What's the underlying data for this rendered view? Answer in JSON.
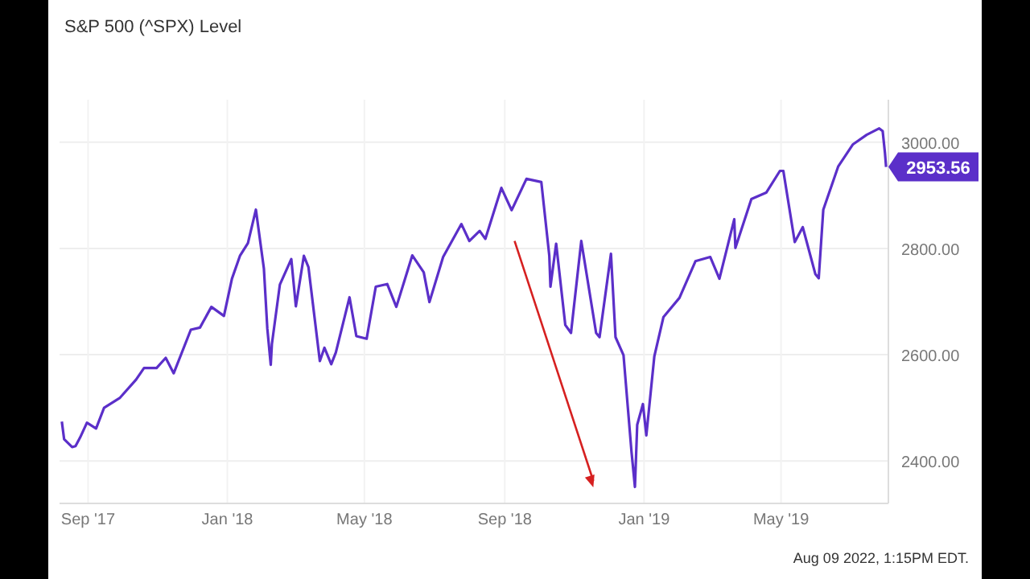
{
  "chart_data": {
    "type": "line",
    "title": "S&P 500 (^SPX) Level",
    "x": [
      "2017-08-09",
      "2017-08-11",
      "2017-08-18",
      "2017-08-21",
      "2017-08-25",
      "2017-08-31",
      "2017-09-08",
      "2017-09-15",
      "2017-09-29",
      "2017-10-13",
      "2017-10-20",
      "2017-10-31",
      "2017-11-08",
      "2017-11-15",
      "2017-11-30",
      "2017-12-08",
      "2017-12-18",
      "2017-12-29",
      "2018-01-05",
      "2018-01-12",
      "2018-01-19",
      "2018-01-26",
      "2018-02-02",
      "2018-02-05",
      "2018-02-08",
      "2018-02-09",
      "2018-02-16",
      "2018-02-26",
      "2018-03-02",
      "2018-03-09",
      "2018-03-13",
      "2018-03-23",
      "2018-03-27",
      "2018-04-02",
      "2018-04-06",
      "2018-04-18",
      "2018-04-24",
      "2018-05-03",
      "2018-05-11",
      "2018-05-21",
      "2018-05-29",
      "2018-06-12",
      "2018-06-22",
      "2018-06-27",
      "2018-07-09",
      "2018-07-25",
      "2018-08-01",
      "2018-08-10",
      "2018-08-15",
      "2018-08-29",
      "2018-09-07",
      "2018-09-20",
      "2018-10-03",
      "2018-10-10",
      "2018-10-11",
      "2018-10-16",
      "2018-10-24",
      "2018-10-29",
      "2018-11-07",
      "2018-11-20",
      "2018-11-23",
      "2018-12-03",
      "2018-12-07",
      "2018-12-14",
      "2018-12-21",
      "2018-12-24",
      "2018-12-26",
      "2018-12-31",
      "2019-01-03",
      "2019-01-10",
      "2019-01-18",
      "2019-02-01",
      "2019-02-15",
      "2019-02-28",
      "2019-03-08",
      "2019-03-21",
      "2019-03-22",
      "2019-04-05",
      "2019-04-18",
      "2019-04-30",
      "2019-05-03",
      "2019-05-13",
      "2019-05-20",
      "2019-05-31",
      "2019-06-03",
      "2019-06-07",
      "2019-06-20",
      "2019-07-03",
      "2019-07-15",
      "2019-07-26",
      "2019-07-29",
      "2019-07-31",
      "2019-08-01"
    ],
    "series": [
      {
        "color": "#5b2fc9",
        "values": [
          2474,
          2441,
          2426,
          2428,
          2444,
          2472,
          2461,
          2500,
          2519,
          2553,
          2575,
          2575,
          2594,
          2565,
          2647,
          2651,
          2690,
          2673,
          2743,
          2786,
          2810,
          2873,
          2762,
          2649,
          2581,
          2620,
          2732,
          2780,
          2691,
          2786,
          2765,
          2588,
          2613,
          2582,
          2604,
          2708,
          2635,
          2630,
          2728,
          2733,
          2690,
          2787,
          2755,
          2699,
          2784,
          2846,
          2814,
          2833,
          2818,
          2914,
          2872,
          2931,
          2925,
          2786,
          2728,
          2809,
          2656,
          2641,
          2814,
          2641,
          2633,
          2790,
          2633,
          2599,
          2417,
          2351,
          2468,
          2507,
          2448,
          2597,
          2671,
          2707,
          2776,
          2784,
          2743,
          2855,
          2801,
          2893,
          2905,
          2946,
          2946,
          2812,
          2840,
          2752,
          2744,
          2873,
          2954,
          2996,
          3014,
          3026,
          3021,
          2980,
          2953.56
        ],
        "value_labels": [
          null,
          null,
          null,
          null,
          null,
          null,
          null,
          null,
          null,
          null,
          null,
          null,
          null,
          null,
          null,
          null,
          null,
          null,
          null,
          null,
          null,
          null,
          null,
          null,
          null,
          null,
          null,
          null,
          null,
          null,
          null,
          null,
          null,
          null,
          null,
          null,
          null,
          null,
          null,
          null,
          null,
          null,
          null,
          null,
          null,
          null,
          null,
          null,
          null,
          null,
          null,
          null,
          null,
          null,
          null,
          null,
          null,
          null,
          null,
          null,
          null,
          null,
          null,
          null,
          null,
          null,
          null,
          null,
          null,
          null,
          null,
          null,
          null,
          null,
          null,
          null,
          null,
          null,
          null,
          null,
          null,
          null,
          null,
          null,
          null,
          null,
          null,
          null,
          null,
          null,
          null,
          null,
          "2953.56"
        ]
      }
    ],
    "xlim": [
      "2017-08-07",
      "2019-08-03"
    ],
    "xticks": [
      {
        "value": "2017-09-01",
        "label": "Sep '17"
      },
      {
        "value": "2018-01-01",
        "label": "Jan '18"
      },
      {
        "value": "2018-05-01",
        "label": "May '18"
      },
      {
        "value": "2018-09-01",
        "label": "Sep '18"
      },
      {
        "value": "2019-01-01",
        "label": "Jan '19"
      },
      {
        "value": "2019-05-01",
        "label": "May '19"
      }
    ],
    "ylim": [
      2320,
      3080
    ],
    "yticks": [
      {
        "value": 2400,
        "label": "2400.00"
      },
      {
        "value": 2600,
        "label": "2600.00"
      },
      {
        "value": 2800,
        "label": "2800.00"
      },
      {
        "value": 3000,
        "label": "3000.00"
      }
    ],
    "grid": true,
    "marker": "none",
    "line_style": "solid",
    "annotations": [
      "Aug 09 2022, 1:15PM EDT."
    ]
  }
}
